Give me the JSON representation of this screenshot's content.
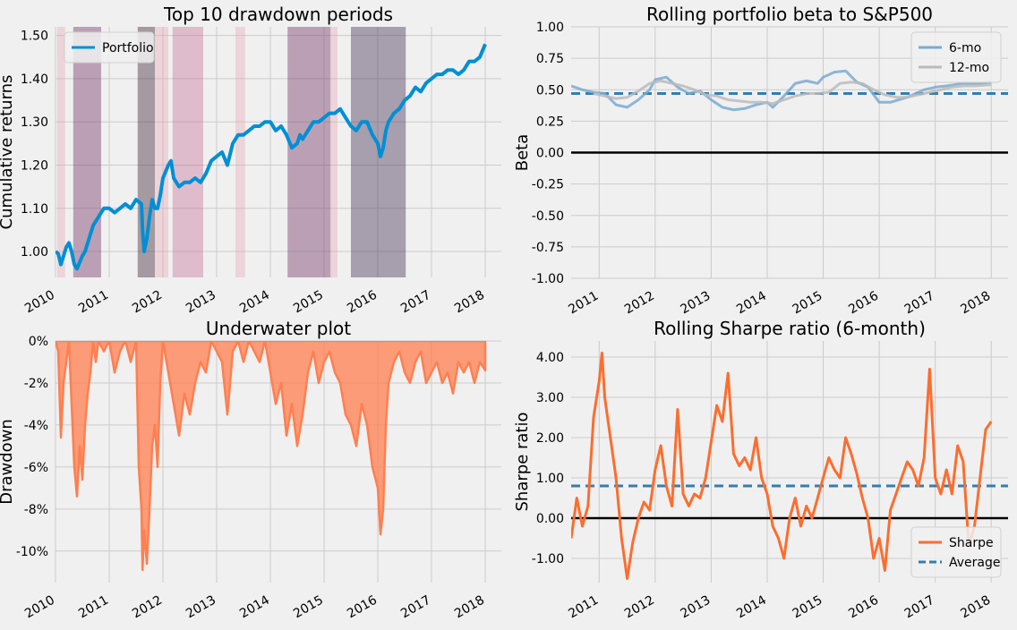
{
  "chart_data": [
    {
      "id": "drawdown_periods",
      "type": "line",
      "title": "Top 10 drawdown periods",
      "xlabel": "",
      "ylabel": "Cumulative returns",
      "xlim": [
        2010.0,
        2018.3
      ],
      "ylim": [
        0.94,
        1.52
      ],
      "x_ticks": [
        2010,
        2011,
        2012,
        2013,
        2014,
        2015,
        2016,
        2017,
        2018
      ],
      "x_tick_labels": [
        "2010",
        "2011",
        "2012",
        "2013",
        "2014",
        "2015",
        "2016",
        "2017",
        "2018"
      ],
      "y_ticks": [
        1.0,
        1.1,
        1.2,
        1.3,
        1.4,
        1.5
      ],
      "y_tick_labels": [
        "1.00",
        "1.10",
        "1.20",
        "1.30",
        "1.40",
        "1.50"
      ],
      "grid": true,
      "legend": {
        "position": "top-left",
        "entries": [
          "Portfolio"
        ]
      },
      "series": [
        {
          "name": "Portfolio",
          "color": "#008fd5",
          "x": [
            2010.0,
            2010.05,
            2010.1,
            2010.15,
            2010.2,
            2010.25,
            2010.3,
            2010.35,
            2010.4,
            2010.45,
            2010.5,
            2010.55,
            2010.6,
            2010.65,
            2010.7,
            2010.8,
            2010.9,
            2011.0,
            2011.1,
            2011.2,
            2011.3,
            2011.4,
            2011.5,
            2011.6,
            2011.62,
            2011.65,
            2011.7,
            2011.75,
            2011.8,
            2011.85,
            2011.9,
            2011.95,
            2012.0,
            2012.1,
            2012.15,
            2012.2,
            2012.3,
            2012.4,
            2012.5,
            2012.6,
            2012.7,
            2012.8,
            2012.9,
            2013.0,
            2013.1,
            2013.2,
            2013.3,
            2013.4,
            2013.5,
            2013.6,
            2013.7,
            2013.8,
            2013.9,
            2014.0,
            2014.1,
            2014.2,
            2014.3,
            2014.4,
            2014.5,
            2014.55,
            2014.6,
            2014.7,
            2014.8,
            2014.9,
            2015.0,
            2015.1,
            2015.2,
            2015.3,
            2015.4,
            2015.5,
            2015.6,
            2015.7,
            2015.8,
            2015.9,
            2016.0,
            2016.05,
            2016.1,
            2016.15,
            2016.2,
            2016.3,
            2016.4,
            2016.5,
            2016.6,
            2016.7,
            2016.8,
            2016.9,
            2017.0,
            2017.1,
            2017.2,
            2017.3,
            2017.4,
            2017.5,
            2017.6,
            2017.7,
            2017.8,
            2017.9,
            2018.0
          ],
          "y": [
            1.0,
            0.995,
            0.97,
            0.99,
            1.01,
            1.02,
            1.0,
            0.97,
            0.96,
            0.975,
            0.99,
            1.0,
            1.02,
            1.04,
            1.06,
            1.08,
            1.1,
            1.1,
            1.09,
            1.1,
            1.11,
            1.1,
            1.12,
            1.11,
            1.05,
            1.0,
            1.03,
            1.08,
            1.12,
            1.1,
            1.1,
            1.13,
            1.17,
            1.2,
            1.21,
            1.17,
            1.15,
            1.16,
            1.16,
            1.17,
            1.16,
            1.18,
            1.21,
            1.22,
            1.23,
            1.2,
            1.25,
            1.27,
            1.27,
            1.28,
            1.29,
            1.29,
            1.3,
            1.3,
            1.28,
            1.29,
            1.27,
            1.24,
            1.25,
            1.27,
            1.26,
            1.28,
            1.3,
            1.3,
            1.31,
            1.32,
            1.32,
            1.33,
            1.31,
            1.29,
            1.28,
            1.3,
            1.3,
            1.27,
            1.25,
            1.22,
            1.24,
            1.28,
            1.3,
            1.32,
            1.33,
            1.35,
            1.36,
            1.38,
            1.37,
            1.39,
            1.4,
            1.41,
            1.41,
            1.42,
            1.42,
            1.41,
            1.42,
            1.44,
            1.44,
            1.45,
            1.48
          ]
        }
      ],
      "shaded_periods": [
        {
          "start": 2010.03,
          "end": 2010.18,
          "color": "#e6a0ad",
          "opacity": 0.35
        },
        {
          "start": 2010.33,
          "end": 2010.85,
          "color": "#7a3d6d",
          "opacity": 0.45
        },
        {
          "start": 2011.53,
          "end": 2011.85,
          "color": "#4a3040",
          "opacity": 0.45
        },
        {
          "start": 2011.85,
          "end": 2012.1,
          "color": "#e6a0ad",
          "opacity": 0.35
        },
        {
          "start": 2012.18,
          "end": 2012.75,
          "color": "#c26e94",
          "opacity": 0.4
        },
        {
          "start": 2013.35,
          "end": 2013.53,
          "color": "#e6a0ad",
          "opacity": 0.35
        },
        {
          "start": 2014.32,
          "end": 2015.12,
          "color": "#7a3d6d",
          "opacity": 0.45
        },
        {
          "start": 2015.12,
          "end": 2015.25,
          "color": "#e6a0ad",
          "opacity": 0.35
        },
        {
          "start": 2015.5,
          "end": 2016.52,
          "color": "#4e3a5e",
          "opacity": 0.45
        }
      ]
    },
    {
      "id": "rolling_beta",
      "type": "line",
      "title": "Rolling portfolio beta to S&P500",
      "xlabel": "",
      "ylabel": "Beta",
      "xlim": [
        2010.5,
        2018.3
      ],
      "ylim": [
        -1.0,
        1.0
      ],
      "x_ticks": [
        2011,
        2012,
        2013,
        2014,
        2015,
        2016,
        2017,
        2018
      ],
      "x_tick_labels": [
        "2011",
        "2012",
        "2013",
        "2014",
        "2015",
        "2016",
        "2017",
        "2018"
      ],
      "y_ticks": [
        -1.0,
        -0.75,
        -0.5,
        -0.25,
        0.0,
        0.25,
        0.5,
        0.75,
        1.0
      ],
      "y_tick_labels": [
        "-1.00",
        "-0.75",
        "-0.50",
        "-0.25",
        "0.00",
        "0.25",
        "0.50",
        "0.75",
        "1.00"
      ],
      "grid": true,
      "legend": {
        "position": "top-right",
        "entries": [
          "6-mo",
          "12-mo"
        ]
      },
      "reference_lines": [
        {
          "y": 0.47,
          "style": "dashed",
          "color": "#2f7fb5"
        },
        {
          "y": 0.0,
          "style": "solid",
          "color": "#000000"
        }
      ],
      "series": [
        {
          "name": "6-mo",
          "color": "#7aaad0",
          "x": [
            2010.5,
            2010.7,
            2010.9,
            2011.1,
            2011.3,
            2011.5,
            2011.7,
            2011.9,
            2012.0,
            2012.2,
            2012.4,
            2012.6,
            2012.8,
            2013.0,
            2013.2,
            2013.4,
            2013.6,
            2013.8,
            2014.0,
            2014.1,
            2014.3,
            2014.5,
            2014.7,
            2014.9,
            2015.0,
            2015.2,
            2015.4,
            2015.6,
            2015.8,
            2016.0,
            2016.2,
            2016.5,
            2016.8,
            2017.0,
            2017.2,
            2017.5,
            2017.8,
            2018.0
          ],
          "y": [
            0.53,
            0.5,
            0.48,
            0.47,
            0.38,
            0.36,
            0.42,
            0.5,
            0.58,
            0.6,
            0.52,
            0.47,
            0.49,
            0.42,
            0.36,
            0.34,
            0.35,
            0.38,
            0.4,
            0.36,
            0.45,
            0.55,
            0.57,
            0.55,
            0.6,
            0.64,
            0.65,
            0.56,
            0.52,
            0.4,
            0.4,
            0.44,
            0.5,
            0.52,
            0.53,
            0.55,
            0.55,
            0.56
          ]
        },
        {
          "name": "12-mo",
          "color": "#bbbbbb",
          "x": [
            2010.9,
            2011.1,
            2011.3,
            2011.5,
            2011.7,
            2011.9,
            2012.1,
            2012.3,
            2012.5,
            2012.7,
            2012.9,
            2013.1,
            2013.3,
            2013.5,
            2013.7,
            2013.9,
            2014.1,
            2014.3,
            2014.5,
            2014.7,
            2014.9,
            2015.1,
            2015.3,
            2015.5,
            2015.7,
            2015.9,
            2016.1,
            2016.3,
            2016.5,
            2016.7,
            2016.9,
            2017.1,
            2017.3,
            2017.5,
            2017.7,
            2018.0
          ],
          "y": [
            0.47,
            0.45,
            0.43,
            0.44,
            0.49,
            0.55,
            0.57,
            0.55,
            0.53,
            0.5,
            0.46,
            0.45,
            0.42,
            0.41,
            0.4,
            0.4,
            0.39,
            0.42,
            0.45,
            0.47,
            0.47,
            0.48,
            0.55,
            0.56,
            0.55,
            0.5,
            0.46,
            0.44,
            0.44,
            0.46,
            0.48,
            0.5,
            0.52,
            0.53,
            0.53,
            0.54
          ]
        }
      ]
    },
    {
      "id": "underwater",
      "type": "area",
      "title": "Underwater plot",
      "xlabel": "",
      "ylabel": "Drawdown",
      "xlim": [
        2010.0,
        2018.3
      ],
      "ylim": [
        -11.5,
        0.0
      ],
      "x_ticks": [
        2010,
        2011,
        2012,
        2013,
        2014,
        2015,
        2016,
        2017,
        2018
      ],
      "x_tick_labels": [
        "2010",
        "2011",
        "2012",
        "2013",
        "2014",
        "2015",
        "2016",
        "2017",
        "2018"
      ],
      "y_ticks": [
        0,
        -2,
        -4,
        -6,
        -8,
        -10
      ],
      "y_tick_labels": [
        "0%",
        "-2%",
        "-4%",
        "-6%",
        "-8%",
        "-10%"
      ],
      "grid": true,
      "series": [
        {
          "name": "",
          "color": "#ff7f50",
          "x": [
            2010.0,
            2010.05,
            2010.1,
            2010.15,
            2010.2,
            2010.25,
            2010.3,
            2010.35,
            2010.4,
            2010.45,
            2010.5,
            2010.55,
            2010.6,
            2010.65,
            2010.7,
            2010.75,
            2010.8,
            2010.9,
            2011.0,
            2011.1,
            2011.2,
            2011.3,
            2011.4,
            2011.5,
            2011.55,
            2011.6,
            2011.62,
            2011.65,
            2011.7,
            2011.75,
            2011.8,
            2011.85,
            2011.9,
            2011.95,
            2012.0,
            2012.1,
            2012.2,
            2012.3,
            2012.4,
            2012.5,
            2012.6,
            2012.7,
            2012.8,
            2012.9,
            2013.0,
            2013.1,
            2013.2,
            2013.3,
            2013.4,
            2013.5,
            2013.6,
            2013.7,
            2013.8,
            2013.9,
            2014.0,
            2014.1,
            2014.2,
            2014.3,
            2014.4,
            2014.5,
            2014.6,
            2014.7,
            2014.8,
            2014.9,
            2015.0,
            2015.1,
            2015.2,
            2015.3,
            2015.4,
            2015.5,
            2015.6,
            2015.7,
            2015.8,
            2015.9,
            2016.0,
            2016.05,
            2016.1,
            2016.15,
            2016.2,
            2016.3,
            2016.4,
            2016.5,
            2016.6,
            2016.7,
            2016.8,
            2016.9,
            2017.0,
            2017.1,
            2017.2,
            2017.3,
            2017.4,
            2017.5,
            2017.6,
            2017.7,
            2017.8,
            2017.9,
            2018.0
          ],
          "y": [
            0.0,
            -0.5,
            -4.6,
            -2.0,
            -1.0,
            0.0,
            -3.0,
            -6.0,
            -7.4,
            -5.0,
            -6.6,
            -4.0,
            -2.5,
            -1.5,
            0.0,
            -1.0,
            0.0,
            -0.5,
            0.0,
            -1.5,
            -0.5,
            0.0,
            -1.0,
            0.0,
            -6.0,
            -8.0,
            -10.9,
            -9.0,
            -10.6,
            -8.0,
            -5.0,
            -4.0,
            -6.0,
            -2.0,
            0.0,
            -1.5,
            -3.0,
            -4.5,
            -2.5,
            -3.5,
            -2.0,
            -1.0,
            -1.5,
            0.0,
            -0.5,
            -1.0,
            -3.5,
            -0.5,
            0.0,
            -1.0,
            0.0,
            -0.5,
            -1.0,
            0.0,
            -1.5,
            -3.0,
            -2.0,
            -4.5,
            -3.0,
            -5.0,
            -3.5,
            -1.5,
            -0.5,
            -2.0,
            -1.0,
            -0.5,
            -1.5,
            -2.0,
            -3.5,
            -4.0,
            -5.0,
            -3.0,
            -4.0,
            -6.0,
            -7.0,
            -9.2,
            -8.0,
            -4.0,
            -2.0,
            -1.0,
            -0.5,
            -1.5,
            -2.0,
            -1.0,
            -0.5,
            -2.0,
            -1.5,
            -1.0,
            -2.0,
            -1.5,
            -2.5,
            -1.0,
            -1.5,
            -1.0,
            -2.0,
            -1.0,
            -1.4
          ]
        }
      ]
    },
    {
      "id": "rolling_sharpe",
      "type": "line",
      "title": "Rolling Sharpe ratio (6-month)",
      "xlabel": "",
      "ylabel": "Sharpe ratio",
      "xlim": [
        2010.5,
        2018.3
      ],
      "ylim": [
        -1.6,
        4.4
      ],
      "x_ticks": [
        2011,
        2012,
        2013,
        2014,
        2015,
        2016,
        2017,
        2018
      ],
      "x_tick_labels": [
        "2011",
        "2012",
        "2013",
        "2014",
        "2015",
        "2016",
        "2017",
        "2018"
      ],
      "y_ticks": [
        -1.0,
        0.0,
        1.0,
        2.0,
        3.0,
        4.0
      ],
      "y_tick_labels": [
        "-1.00",
        "0.00",
        "1.00",
        "2.00",
        "3.00",
        "4.00"
      ],
      "grid": true,
      "legend": {
        "position": "bottom-right",
        "entries": [
          "Sharpe",
          "Average"
        ]
      },
      "reference_lines": [
        {
          "y": 0.8,
          "style": "dashed",
          "color": "#2f7fb5"
        },
        {
          "y": 0.0,
          "style": "solid",
          "color": "#000000"
        }
      ],
      "series": [
        {
          "name": "Sharpe",
          "color": "#fc6d2e",
          "x": [
            2010.5,
            2010.6,
            2010.7,
            2010.8,
            2010.9,
            2011.0,
            2011.05,
            2011.1,
            2011.2,
            2011.3,
            2011.4,
            2011.5,
            2011.6,
            2011.7,
            2011.8,
            2011.9,
            2012.0,
            2012.1,
            2012.2,
            2012.3,
            2012.4,
            2012.5,
            2012.6,
            2012.7,
            2012.8,
            2012.9,
            2013.0,
            2013.1,
            2013.2,
            2013.3,
            2013.4,
            2013.5,
            2013.6,
            2013.7,
            2013.8,
            2013.9,
            2014.0,
            2014.1,
            2014.2,
            2014.3,
            2014.4,
            2014.5,
            2014.6,
            2014.7,
            2014.8,
            2014.9,
            2015.0,
            2015.1,
            2015.2,
            2015.3,
            2015.4,
            2015.5,
            2015.6,
            2015.7,
            2015.8,
            2015.9,
            2016.0,
            2016.1,
            2016.2,
            2016.3,
            2016.4,
            2016.5,
            2016.6,
            2016.7,
            2016.8,
            2016.9,
            2017.0,
            2017.1,
            2017.2,
            2017.3,
            2017.4,
            2017.5,
            2017.6,
            2017.7,
            2017.8,
            2017.9,
            2018.0
          ],
          "y": [
            -0.5,
            0.5,
            -0.2,
            0.3,
            2.5,
            3.4,
            4.1,
            3.0,
            2.0,
            1.0,
            -0.5,
            -1.5,
            -0.6,
            0.0,
            0.4,
            0.2,
            1.2,
            1.8,
            0.8,
            0.3,
            2.7,
            0.6,
            0.3,
            0.6,
            0.5,
            1.0,
            1.9,
            2.8,
            2.4,
            3.6,
            1.6,
            1.3,
            1.5,
            1.2,
            2.0,
            1.0,
            0.6,
            -0.2,
            -0.5,
            -1.0,
            0.0,
            0.5,
            -0.2,
            0.3,
            0.0,
            0.5,
            1.0,
            1.5,
            1.2,
            1.0,
            2.0,
            1.6,
            1.1,
            0.5,
            0.0,
            -1.0,
            -0.5,
            -1.3,
            0.2,
            0.6,
            1.0,
            1.4,
            1.2,
            0.8,
            1.5,
            3.7,
            1.0,
            0.6,
            1.2,
            0.6,
            1.8,
            1.4,
            -0.7,
            -0.2,
            1.0,
            2.2,
            2.4
          ]
        }
      ]
    }
  ]
}
